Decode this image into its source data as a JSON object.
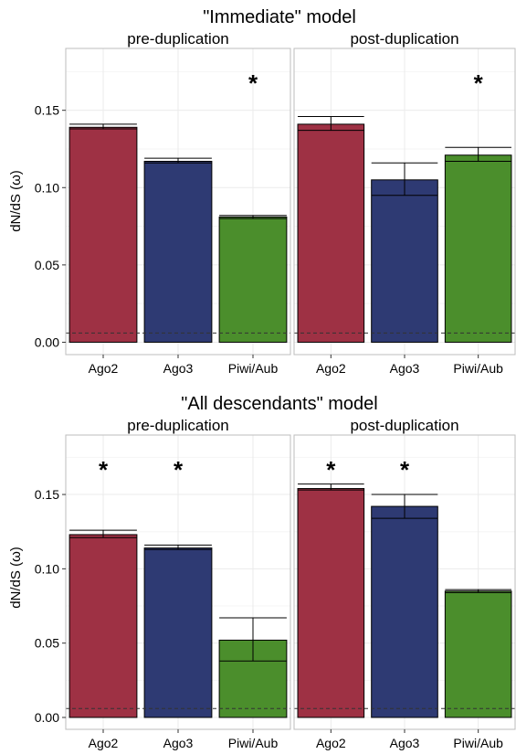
{
  "chart_data": [
    {
      "type": "bar",
      "title": "\"Immediate\" model",
      "ylabel": "dN/dS (ω)",
      "ylim": [
        -0.008,
        0.19
      ],
      "yticks": [
        "0.00",
        "0.05",
        "0.10",
        "0.15"
      ],
      "ytick_values": [
        0,
        0.05,
        0.1,
        0.15
      ],
      "reference_line": 0.006,
      "categories": [
        "Ago2",
        "Ago3",
        "Piwi/Aub"
      ],
      "colors": [
        "#9e3144",
        "#2e3a73",
        "#4b8e2c"
      ],
      "grid": true,
      "panels": [
        {
          "name": "pre-duplication",
          "values": [
            0.139,
            0.117,
            0.081
          ],
          "err_low": [
            0.138,
            0.116,
            0.08
          ],
          "err_high": [
            0.141,
            0.119,
            0.082
          ],
          "significant": [
            false,
            false,
            true
          ]
        },
        {
          "name": "post-duplication",
          "values": [
            0.141,
            0.105,
            0.121
          ],
          "err_low": [
            0.137,
            0.095,
            0.117
          ],
          "err_high": [
            0.146,
            0.116,
            0.126
          ],
          "significant": [
            false,
            false,
            true
          ]
        }
      ]
    },
    {
      "type": "bar",
      "title": "\"All descendants\" model",
      "ylabel": "dN/dS (ω)",
      "ylim": [
        -0.008,
        0.19
      ],
      "yticks": [
        "0.00",
        "0.05",
        "0.10",
        "0.15"
      ],
      "ytick_values": [
        0,
        0.05,
        0.1,
        0.15
      ],
      "reference_line": 0.006,
      "categories": [
        "Ago2",
        "Ago3",
        "Piwi/Aub"
      ],
      "colors": [
        "#9e3144",
        "#2e3a73",
        "#4b8e2c"
      ],
      "grid": true,
      "panels": [
        {
          "name": "pre-duplication",
          "values": [
            0.123,
            0.114,
            0.052
          ],
          "err_low": [
            0.121,
            0.113,
            0.038
          ],
          "err_high": [
            0.126,
            0.116,
            0.067
          ],
          "significant": [
            true,
            true,
            false
          ]
        },
        {
          "name": "post-duplication",
          "values": [
            0.154,
            0.142,
            0.085
          ],
          "err_low": [
            0.153,
            0.134,
            0.084
          ],
          "err_high": [
            0.157,
            0.15,
            0.086
          ],
          "significant": [
            true,
            true,
            false
          ]
        }
      ]
    }
  ]
}
